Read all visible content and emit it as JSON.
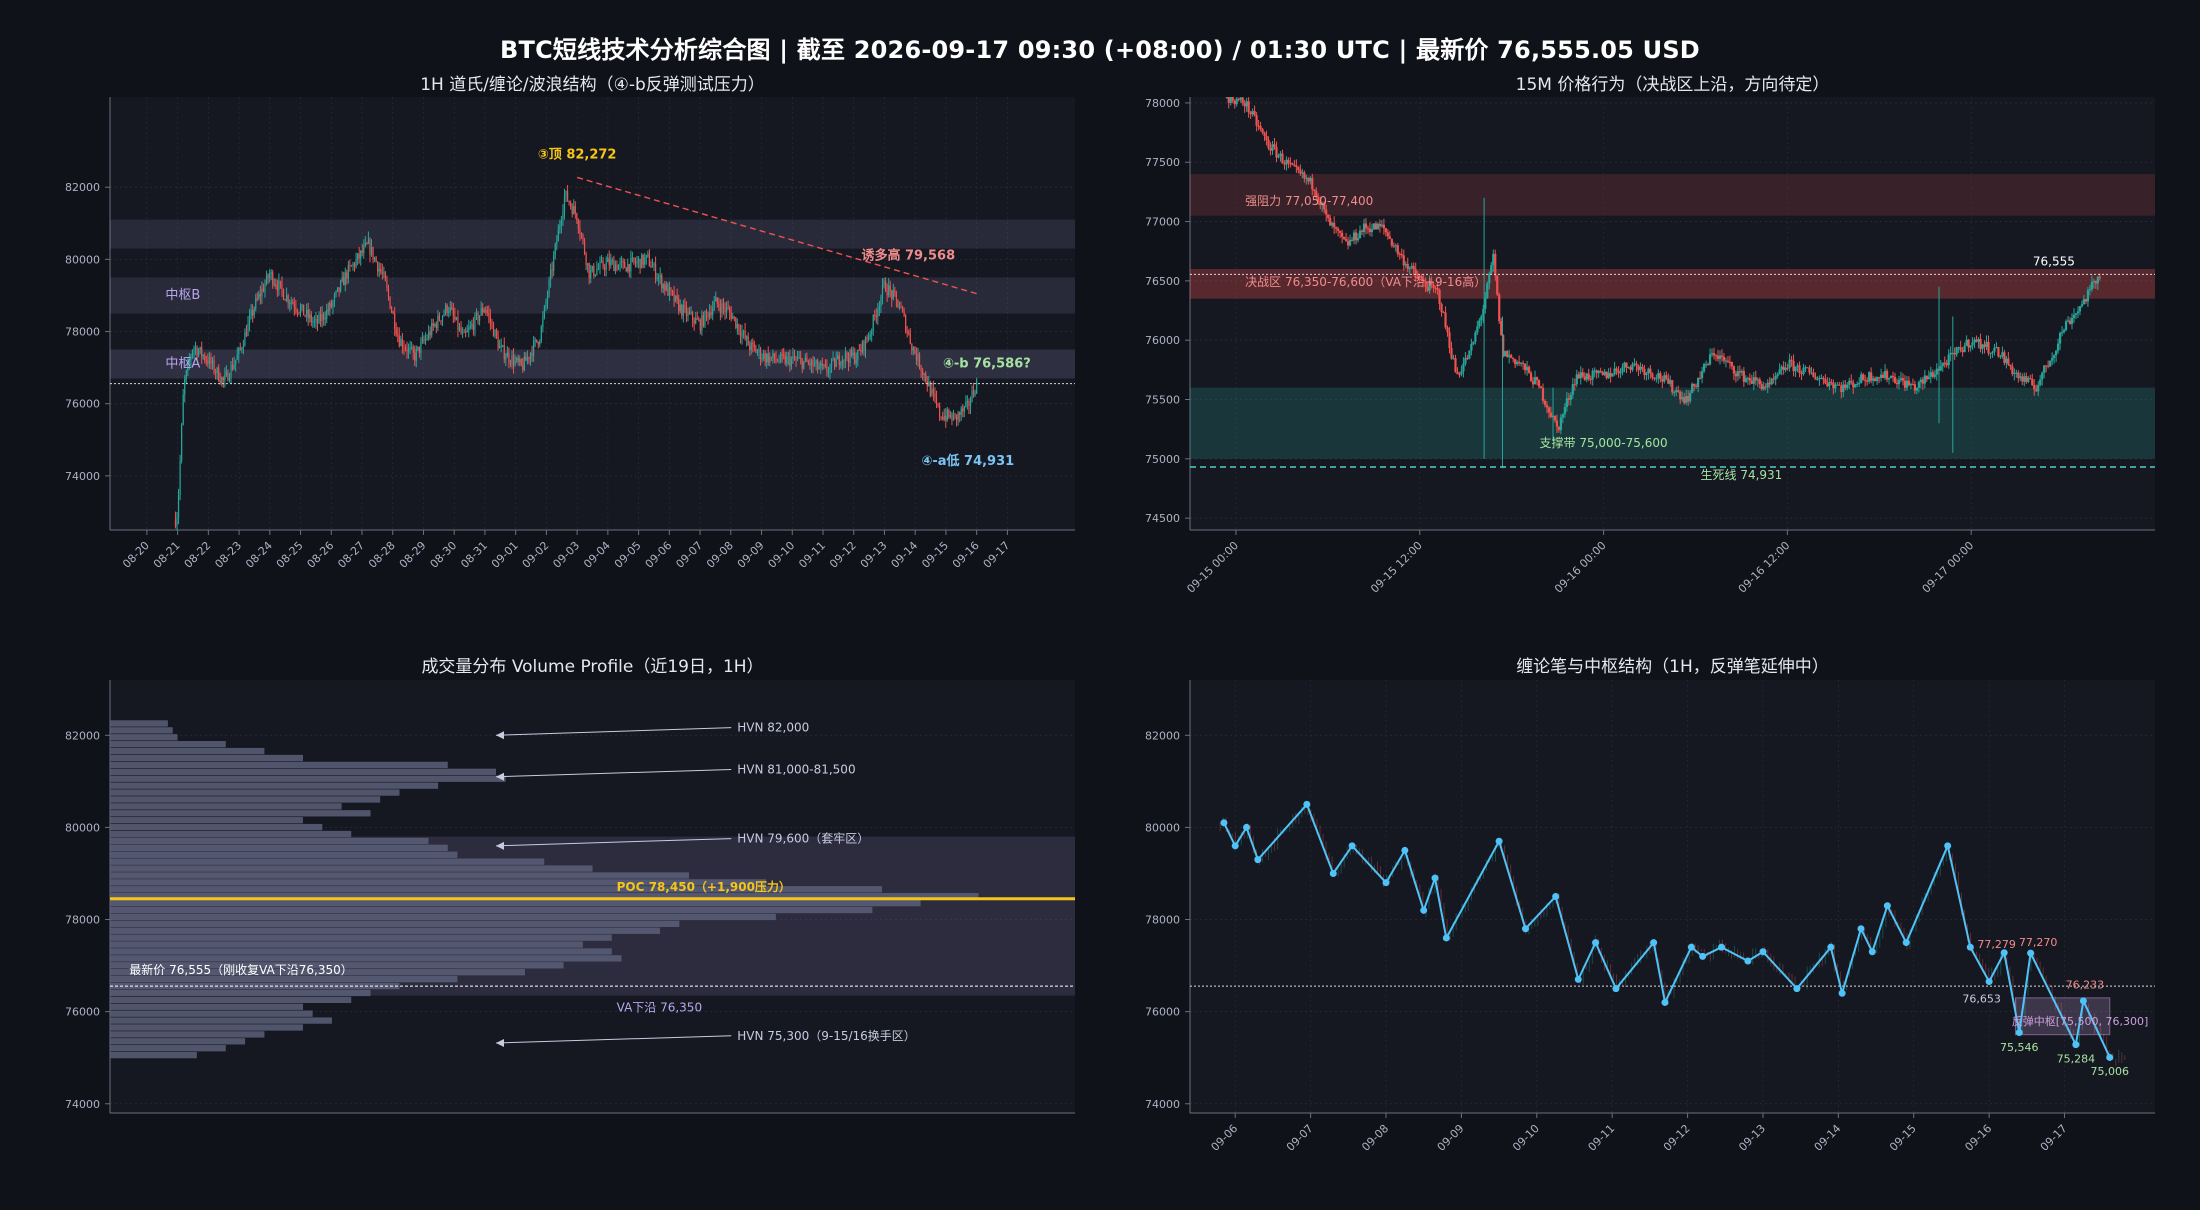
{
  "suptitle": "BTC短线技术分析综合图  |  截至 2026-09-17 09:30 (+08:00) / 01:30 UTC  |  最新价 76,555.05 USD",
  "colors": {
    "bg": "#10121a",
    "panel": "#161821",
    "grid": "#2a2d3a",
    "axis": "#6b6f80",
    "tick": "#aeb2c2",
    "up": "#26a69a",
    "down": "#ef5350",
    "gold": "#f5c518",
    "pen": "#4fc3f7"
  },
  "chart_data": [
    {
      "id": "h1",
      "type": "candlestick",
      "title": "1H 道氏/缠论/波浪结构（④-b反弹测试压力）",
      "ylim": [
        72500,
        84500
      ],
      "yticks": [
        74000,
        76000,
        78000,
        80000,
        82000
      ],
      "xticks": [
        "08-20",
        "08-21",
        "08-22",
        "08-23",
        "08-24",
        "08-25",
        "08-26",
        "08-27",
        "08-28",
        "08-29",
        "08-30",
        "08-31",
        "09-01",
        "09-02",
        "09-03",
        "09-04",
        "09-05",
        "09-06",
        "09-07",
        "09-08",
        "09-09",
        "09-10",
        "09-11",
        "09-12",
        "09-13",
        "09-14",
        "09-15",
        "09-16",
        "09-17"
      ],
      "path": [
        [
          0.93,
          72800
        ],
        [
          1.0,
          73000
        ],
        [
          1.2,
          76500
        ],
        [
          1.5,
          77600
        ],
        [
          2.0,
          77200
        ],
        [
          2.5,
          76600
        ],
        [
          3.0,
          77400
        ],
        [
          3.5,
          78700
        ],
        [
          4.0,
          79600
        ],
        [
          4.5,
          79000
        ],
        [
          5.0,
          78600
        ],
        [
          5.5,
          78200
        ],
        [
          6.0,
          78700
        ],
        [
          6.5,
          79600
        ],
        [
          7.2,
          80400
        ],
        [
          7.7,
          79500
        ],
        [
          8.2,
          77800
        ],
        [
          8.7,
          77300
        ],
        [
          9.3,
          78100
        ],
        [
          9.8,
          78700
        ],
        [
          10.3,
          77800
        ],
        [
          11.0,
          78700
        ],
        [
          11.5,
          77500
        ],
        [
          12.2,
          77000
        ],
        [
          12.8,
          77900
        ],
        [
          13.6,
          81800
        ],
        [
          14.0,
          81200
        ],
        [
          14.4,
          79600
        ],
        [
          15.0,
          79900
        ],
        [
          15.5,
          79800
        ],
        [
          16.3,
          80000
        ],
        [
          16.8,
          79300
        ],
        [
          17.4,
          78600
        ],
        [
          18.0,
          78200
        ],
        [
          18.5,
          78800
        ],
        [
          19.0,
          78500
        ],
        [
          19.6,
          77600
        ],
        [
          20.1,
          77300
        ],
        [
          20.6,
          77200
        ],
        [
          21.1,
          77200
        ],
        [
          21.6,
          77100
        ],
        [
          22.1,
          76900
        ],
        [
          22.6,
          77300
        ],
        [
          23.1,
          77300
        ],
        [
          23.5,
          77900
        ],
        [
          24.0,
          79300
        ],
        [
          24.5,
          78700
        ],
        [
          24.9,
          77600
        ],
        [
          25.3,
          76800
        ],
        [
          25.8,
          75700
        ],
        [
          26.3,
          75600
        ],
        [
          26.7,
          75900
        ],
        [
          27.0,
          76580
        ]
      ],
      "zones": [
        {
          "y1": 80300,
          "y2": 81100,
          "color": "#9b9bd1",
          "opacity": 0.14
        },
        {
          "y1": 78500,
          "y2": 79500,
          "color": "#9b9bd1",
          "opacity": 0.14
        },
        {
          "y1": 76700,
          "y2": 77500,
          "color": "#9b9bd1",
          "opacity": 0.18
        }
      ],
      "price_line": 76555,
      "trendline": {
        "from": [
          14.0,
          82272
        ],
        "to": [
          27.0,
          79050
        ]
      },
      "annotations": [
        {
          "text": "③顶 82,272",
          "x": 14.0,
          "y": 82800,
          "color": "#f5c518",
          "bold": true,
          "anchor": "middle"
        },
        {
          "text": "诱多高 79,568",
          "x": 26.3,
          "y": 80000,
          "color": "#f08c8c",
          "bold": true,
          "anchor": "end"
        },
        {
          "text": "④-b 76,586?",
          "x": 25.9,
          "y": 77000,
          "color": "#a6e3a1",
          "bold": true,
          "anchor": "start"
        },
        {
          "text": "④-a低 74,931",
          "x": 25.2,
          "y": 74300,
          "color": "#7cc4f5",
          "bold": true,
          "anchor": "start"
        },
        {
          "text": "中枢B",
          "x": 0.6,
          "y": 78900,
          "color": "#b9a6ee",
          "bold": false,
          "anchor": "start"
        },
        {
          "text": "中枢A",
          "x": 0.6,
          "y": 77000,
          "color": "#b9a6ee",
          "bold": false,
          "anchor": "start"
        }
      ]
    },
    {
      "id": "m15",
      "type": "candlestick",
      "title": "15M 价格行为（决战区上沿，方向待定）",
      "ylim": [
        74400,
        78050
      ],
      "yticks": [
        74500,
        75000,
        75500,
        76000,
        76500,
        77000,
        77500,
        78000
      ],
      "xticks": [
        "09-15 00:00",
        "09-15 12:00",
        "09-16 00:00",
        "09-16 12:00",
        "09-17 00:00"
      ],
      "path": [
        [
          -0.1,
          78050
        ],
        [
          0.1,
          78000
        ],
        [
          0.35,
          77650
        ],
        [
          0.6,
          77450
        ],
        [
          0.85,
          77300
        ],
        [
          1.0,
          77000
        ],
        [
          1.2,
          76800
        ],
        [
          1.4,
          76950
        ],
        [
          1.6,
          76950
        ],
        [
          1.8,
          76700
        ],
        [
          2.0,
          76500
        ],
        [
          2.2,
          76400
        ],
        [
          2.4,
          75700
        ],
        [
          2.55,
          75900
        ],
        [
          2.7,
          76300
        ],
        [
          2.8,
          76700
        ],
        [
          2.9,
          75900
        ],
        [
          3.1,
          75800
        ],
        [
          3.3,
          75600
        ],
        [
          3.5,
          75250
        ],
        [
          3.7,
          75700
        ],
        [
          4.0,
          75700
        ],
        [
          4.3,
          75800
        ],
        [
          4.6,
          75700
        ],
        [
          4.9,
          75500
        ],
        [
          5.2,
          75900
        ],
        [
          5.5,
          75700
        ],
        [
          5.8,
          75600
        ],
        [
          6.0,
          75800
        ],
        [
          6.3,
          75700
        ],
        [
          6.6,
          75600
        ],
        [
          6.9,
          75700
        ],
        [
          7.1,
          75700
        ],
        [
          7.4,
          75600
        ],
        [
          7.7,
          75800
        ],
        [
          8.0,
          76000
        ],
        [
          8.3,
          75900
        ],
        [
          8.5,
          75700
        ],
        [
          8.7,
          75600
        ],
        [
          8.9,
          75900
        ],
        [
          9.0,
          76100
        ],
        [
          9.2,
          76300
        ],
        [
          9.4,
          76555
        ]
      ],
      "spikes": [
        {
          "x": 2.7,
          "low": 75000,
          "high": 77200
        },
        {
          "x": 2.9,
          "low": 74920,
          "high": 76200
        },
        {
          "x": 7.65,
          "low": 75300,
          "high": 76450
        },
        {
          "x": 7.8,
          "low": 75050,
          "high": 76200
        },
        {
          "x": 3.45,
          "low": 75150,
          "high": 75600
        }
      ],
      "zones": [
        {
          "y1": 77050,
          "y2": 77400,
          "color": "#ef5350",
          "opacity": 0.16
        },
        {
          "y1": 76350,
          "y2": 76600,
          "color": "#ef5350",
          "opacity": 0.3
        },
        {
          "y1": 75000,
          "y2": 75600,
          "color": "#26a69a",
          "opacity": 0.22
        }
      ],
      "price_line": 76555,
      "support_line": 74931,
      "annotations": [
        {
          "text": "强阻力 77,050-77,400",
          "x": 0.1,
          "y": 77140,
          "color": "#f08c8c",
          "bold": false,
          "anchor": "start"
        },
        {
          "text": "决战区 76,350-76,600（VA下沿+9-16高）",
          "x": 0.1,
          "y": 76455,
          "color": "#f08c8c",
          "bold": false,
          "anchor": "start"
        },
        {
          "text": "支撑带 75,000-75,600",
          "x": 4.0,
          "y": 75100,
          "color": "#a6e3a1",
          "bold": false,
          "anchor": "middle"
        },
        {
          "text": "生死线 74,931",
          "x": 5.5,
          "y": 74830,
          "color": "#a6e3a1",
          "bold": false,
          "anchor": "middle"
        },
        {
          "text": "76,555",
          "x": 8.9,
          "y": 76630,
          "color": "#ffffff",
          "bold": false,
          "anchor": "middle"
        }
      ]
    },
    {
      "id": "vp",
      "type": "volume_profile",
      "title": "成交量分布 Volume Profile（近19日，1H）",
      "ylim": [
        73800,
        83200
      ],
      "yticks": [
        74000,
        76000,
        78000,
        80000,
        82000
      ],
      "bins": [
        [
          82250,
          0.06
        ],
        [
          82100,
          0.065
        ],
        [
          81950,
          0.07
        ],
        [
          81800,
          0.12
        ],
        [
          81650,
          0.16
        ],
        [
          81500,
          0.2
        ],
        [
          81350,
          0.35
        ],
        [
          81200,
          0.4
        ],
        [
          81050,
          0.41
        ],
        [
          80900,
          0.34
        ],
        [
          80750,
          0.3
        ],
        [
          80600,
          0.28
        ],
        [
          80450,
          0.24
        ],
        [
          80300,
          0.27
        ],
        [
          80150,
          0.2
        ],
        [
          80000,
          0.22
        ],
        [
          79850,
          0.25
        ],
        [
          79700,
          0.33
        ],
        [
          79550,
          0.35
        ],
        [
          79400,
          0.36
        ],
        [
          79250,
          0.45
        ],
        [
          79100,
          0.5
        ],
        [
          78950,
          0.6
        ],
        [
          78800,
          0.68
        ],
        [
          78650,
          0.8
        ],
        [
          78500,
          0.9
        ],
        [
          78350,
          0.84
        ],
        [
          78200,
          0.79
        ],
        [
          78050,
          0.69
        ],
        [
          77900,
          0.59
        ],
        [
          77750,
          0.57
        ],
        [
          77600,
          0.52
        ],
        [
          77450,
          0.49
        ],
        [
          77300,
          0.52
        ],
        [
          77150,
          0.53
        ],
        [
          77000,
          0.47
        ],
        [
          76850,
          0.43
        ],
        [
          76700,
          0.36
        ],
        [
          76550,
          0.3
        ],
        [
          76400,
          0.27
        ],
        [
          76250,
          0.25
        ],
        [
          76100,
          0.2
        ],
        [
          75950,
          0.21
        ],
        [
          75800,
          0.23
        ],
        [
          75650,
          0.2
        ],
        [
          75500,
          0.16
        ],
        [
          75350,
          0.14
        ],
        [
          75200,
          0.12
        ],
        [
          75050,
          0.09
        ]
      ],
      "value_area": [
        76350,
        79800
      ],
      "poc": 78450,
      "price_line": 76555,
      "annotations": [
        {
          "text": "HVN 82,000",
          "x": 0.65,
          "y": 82080,
          "color": "#c8cbe0",
          "bold": false,
          "anchor": "start",
          "arrow_to": [
            0.4,
            82000
          ]
        },
        {
          "text": "HVN 81,000-81,500",
          "x": 0.65,
          "y": 81170,
          "color": "#c8cbe0",
          "bold": false,
          "anchor": "start",
          "arrow_to": [
            0.4,
            81100
          ]
        },
        {
          "text": "HVN 79,600（套牢区）",
          "x": 0.65,
          "y": 79670,
          "color": "#c8cbe0",
          "bold": false,
          "anchor": "start",
          "arrow_to": [
            0.4,
            79600
          ]
        },
        {
          "text": "POC 78,450（+1,900压力）",
          "x": 0.525,
          "y": 78620,
          "color": "#f5c518",
          "bold": true,
          "anchor": "start"
        },
        {
          "text": "最新价 76,555（刚收复VA下沿76,350）",
          "x": 0.02,
          "y": 76820,
          "color": "#ffffff",
          "bold": false,
          "anchor": "start"
        },
        {
          "text": "VA下沿 76,350",
          "x": 0.525,
          "y": 76000,
          "color": "#b9a6ee",
          "bold": false,
          "anchor": "start"
        },
        {
          "text": "HVN 75,300（9-15/16换手区）",
          "x": 0.65,
          "y": 75390,
          "color": "#c8cbe0",
          "bold": false,
          "anchor": "start",
          "arrow_to": [
            0.4,
            75320
          ]
        }
      ]
    },
    {
      "id": "chan",
      "type": "line",
      "title": "缠论笔与中枢结构（1H，反弹笔延伸中）",
      "ylim": [
        73800,
        83200
      ],
      "yticks": [
        74000,
        76000,
        78000,
        80000,
        82000
      ],
      "xticks": [
        "09-06",
        "09-07",
        "09-08",
        "09-09",
        "09-10",
        "09-11",
        "09-12",
        "09-13",
        "09-14",
        "09-15",
        "09-16",
        "09-17"
      ],
      "series": [
        {
          "points": [
            [
              -0.15,
              80100
            ],
            [
              0.0,
              79600
            ],
            [
              0.15,
              80000
            ],
            [
              0.3,
              79300
            ],
            [
              0.95,
              80500
            ],
            [
              1.3,
              79000
            ],
            [
              1.55,
              79600
            ],
            [
              2.0,
              78800
            ],
            [
              2.25,
              79500
            ],
            [
              2.5,
              78200
            ],
            [
              2.65,
              78900
            ],
            [
              2.8,
              77600
            ],
            [
              3.5,
              79700
            ],
            [
              3.85,
              77800
            ],
            [
              4.25,
              78500
            ],
            [
              4.55,
              76700
            ],
            [
              4.78,
              77500
            ],
            [
              5.05,
              76500
            ],
            [
              5.55,
              77500
            ],
            [
              5.7,
              76200
            ],
            [
              6.05,
              77400
            ],
            [
              6.2,
              77200
            ],
            [
              6.45,
              77400
            ],
            [
              6.8,
              77100
            ],
            [
              7.0,
              77300
            ],
            [
              7.45,
              76500
            ],
            [
              7.9,
              77400
            ],
            [
              8.05,
              76400
            ],
            [
              8.3,
              77800
            ],
            [
              8.45,
              77300
            ],
            [
              8.65,
              78300
            ],
            [
              8.9,
              77500
            ],
            [
              9.45,
              79600
            ],
            [
              9.75,
              77400
            ],
            [
              10.0,
              76653
            ],
            [
              10.2,
              77279
            ],
            [
              10.4,
              75546
            ],
            [
              10.55,
              77270
            ],
            [
              11.15,
              75284
            ],
            [
              11.25,
              76233
            ],
            [
              11.6,
              75006
            ]
          ]
        }
      ],
      "zone": {
        "x1": 10.35,
        "x2": 11.6,
        "y1": 75500,
        "y2": 76300,
        "color": "#c9a0dc",
        "opacity": 0.22
      },
      "price_line": 76555,
      "annotations": [
        {
          "text": "77,279",
          "x": 10.1,
          "y": 77380,
          "color": "#f08c8c",
          "bold": false,
          "anchor": "middle"
        },
        {
          "text": "77,270",
          "x": 10.65,
          "y": 77420,
          "color": "#f08c8c",
          "bold": false,
          "anchor": "middle"
        },
        {
          "text": "76,653",
          "x": 9.9,
          "y": 76200,
          "color": "#c8cbe0",
          "bold": false,
          "anchor": "middle"
        },
        {
          "text": "76,233",
          "x": 11.27,
          "y": 76500,
          "color": "#f08c8c",
          "bold": false,
          "anchor": "middle"
        },
        {
          "text": "75,546",
          "x": 10.4,
          "y": 75150,
          "color": "#a6e3a1",
          "bold": false,
          "anchor": "middle"
        },
        {
          "text": "75,284",
          "x": 11.15,
          "y": 74900,
          "color": "#a6e3a1",
          "bold": false,
          "anchor": "middle"
        },
        {
          "text": "75,006",
          "x": 11.6,
          "y": 74620,
          "color": "#a6e3a1",
          "bold": false,
          "anchor": "middle"
        },
        {
          "text": "反弹中枢[75,500, 76,300]",
          "x": 10.3,
          "y": 75710,
          "color": "#c9a0dc",
          "bold": false,
          "anchor": "start"
        }
      ]
    }
  ]
}
